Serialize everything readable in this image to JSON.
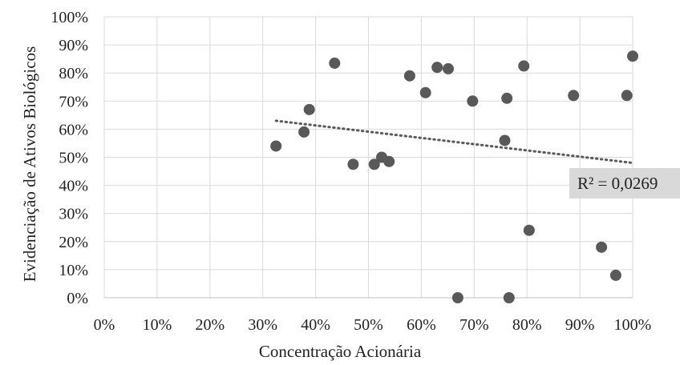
{
  "chart_data": {
    "type": "scatter",
    "title": "",
    "xlabel": "Concentração Acionária",
    "ylabel": "Evidenciação de Ativos Biológicos",
    "xlim": [
      0,
      1
    ],
    "ylim": [
      0,
      1
    ],
    "x_ticks": [
      "0%",
      "10%",
      "20%",
      "30%",
      "40%",
      "50%",
      "60%",
      "70%",
      "80%",
      "90%",
      "100%"
    ],
    "y_ticks": [
      "0%",
      "10%",
      "20%",
      "30%",
      "40%",
      "50%",
      "60%",
      "70%",
      "80%",
      "90%",
      "100%"
    ],
    "grid": true,
    "legend": "none",
    "marker_color": "#595959",
    "trendline": {
      "type": "linear",
      "style": "dotted",
      "color": "#595959",
      "x_start": 0.325,
      "x_end": 1.0,
      "y_start": 0.63,
      "y_end": 0.48,
      "r2_label": "R² = 0,0269"
    },
    "points": [
      {
        "x": 0.325,
        "y": 0.54
      },
      {
        "x": 0.378,
        "y": 0.59
      },
      {
        "x": 0.388,
        "y": 0.67
      },
      {
        "x": 0.436,
        "y": 0.835
      },
      {
        "x": 0.471,
        "y": 0.475
      },
      {
        "x": 0.511,
        "y": 0.475
      },
      {
        "x": 0.525,
        "y": 0.5
      },
      {
        "x": 0.539,
        "y": 0.485
      },
      {
        "x": 0.578,
        "y": 0.79
      },
      {
        "x": 0.608,
        "y": 0.73
      },
      {
        "x": 0.63,
        "y": 0.82
      },
      {
        "x": 0.651,
        "y": 0.815
      },
      {
        "x": 0.669,
        "y": 0.0
      },
      {
        "x": 0.697,
        "y": 0.7
      },
      {
        "x": 0.758,
        "y": 0.56
      },
      {
        "x": 0.762,
        "y": 0.71
      },
      {
        "x": 0.766,
        "y": 0.0
      },
      {
        "x": 0.794,
        "y": 0.825
      },
      {
        "x": 0.804,
        "y": 0.24
      },
      {
        "x": 0.888,
        "y": 0.72
      },
      {
        "x": 0.941,
        "y": 0.18
      },
      {
        "x": 0.968,
        "y": 0.08
      },
      {
        "x": 0.989,
        "y": 0.72
      },
      {
        "x": 1.0,
        "y": 0.86
      }
    ]
  }
}
